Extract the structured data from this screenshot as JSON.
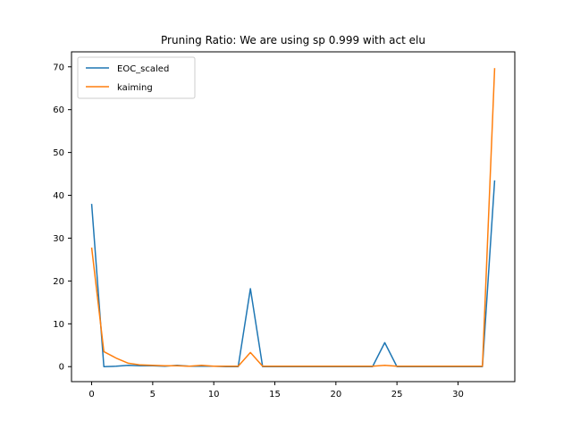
{
  "chart_data": {
    "type": "line",
    "title": "Pruning Ratio: We are using sp 0.999 with act elu",
    "xlabel": "",
    "ylabel": "",
    "xlim": [
      -1.65,
      34.65
    ],
    "ylim": [
      -3.5,
      73.5
    ],
    "xticks": [
      0,
      5,
      10,
      15,
      20,
      25,
      30
    ],
    "yticks": [
      0,
      10,
      20,
      30,
      40,
      50,
      60,
      70
    ],
    "grid": false,
    "legend_position": "top-left",
    "x": [
      0,
      1,
      2,
      3,
      4,
      5,
      6,
      7,
      8,
      9,
      10,
      11,
      12,
      13,
      14,
      15,
      16,
      17,
      18,
      19,
      20,
      21,
      22,
      23,
      24,
      25,
      26,
      27,
      28,
      29,
      30,
      31,
      32,
      33
    ],
    "series": [
      {
        "name": "EOC_scaled",
        "color": "#1f77b4",
        "values": [
          38,
          0,
          0.1,
          0.3,
          0.2,
          0.2,
          0.1,
          0.3,
          0.1,
          0.1,
          0.1,
          0,
          0,
          18.2,
          0,
          0,
          0,
          0,
          0,
          0,
          0,
          0,
          0,
          0,
          5.6,
          0,
          0,
          0,
          0,
          0,
          0,
          0,
          0,
          43.5
        ]
      },
      {
        "name": "kaiming",
        "color": "#ff7f0e",
        "values": [
          27.8,
          3.5,
          2,
          0.8,
          0.4,
          0.3,
          0.2,
          0.2,
          0.1,
          0.3,
          0.1,
          0.1,
          0.1,
          3.3,
          0.1,
          0.1,
          0.1,
          0.1,
          0.1,
          0.1,
          0.1,
          0.1,
          0.1,
          0.1,
          0.3,
          0.1,
          0.1,
          0.1,
          0.1,
          0.1,
          0.1,
          0.1,
          0.1,
          69.7
        ]
      }
    ]
  }
}
